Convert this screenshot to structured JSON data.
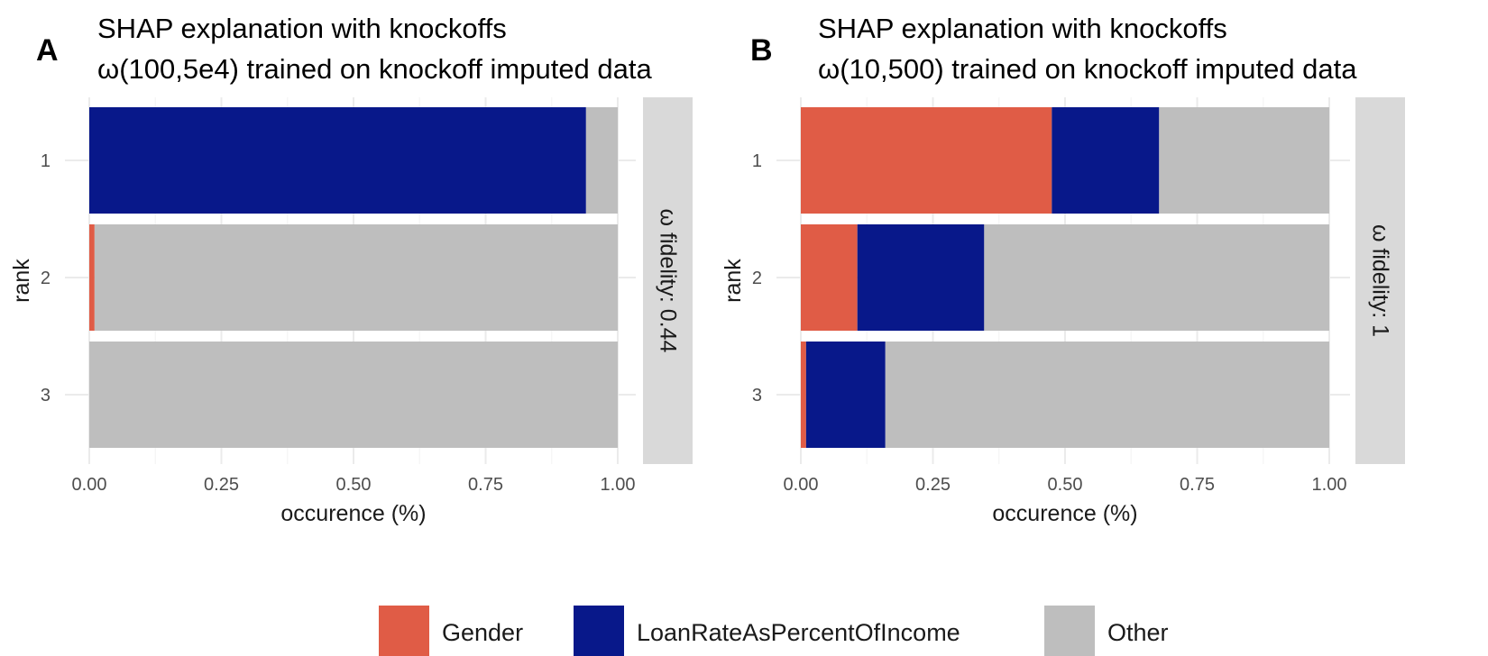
{
  "chart_data": [
    {
      "type": "bar",
      "orientation": "horizontal",
      "stacked": true,
      "panel_label": "A",
      "title": "SHAP explanation with knockoffs",
      "subtitle": "ω(100,5e4) trained on knockoff imputed data",
      "xlabel": "occurence (%)",
      "ylabel": "rank",
      "xlim": [
        0,
        1
      ],
      "x_ticks": [
        "0.00",
        "0.25",
        "0.50",
        "0.75",
        "1.00"
      ],
      "categories": [
        "1",
        "2",
        "3"
      ],
      "facet_label": "ω fidelity: 0.44",
      "series": [
        {
          "name": "Gender",
          "color": "#e05c46",
          "values": [
            0.0,
            0.01,
            0.0
          ]
        },
        {
          "name": "LoanRateAsPercentOfIncome",
          "color": "#08188a",
          "values": [
            0.94,
            0.0,
            0.0
          ]
        },
        {
          "name": "Other",
          "color": "#bebebe",
          "values": [
            0.06,
            0.99,
            1.0
          ]
        }
      ],
      "grid": true
    },
    {
      "type": "bar",
      "orientation": "horizontal",
      "stacked": true,
      "panel_label": "B",
      "title": "SHAP explanation with knockoffs",
      "subtitle": "ω(10,500) trained on knockoff imputed data",
      "xlabel": "occurence (%)",
      "ylabel": "rank",
      "xlim": [
        0,
        1
      ],
      "x_ticks": [
        "0.00",
        "0.25",
        "0.50",
        "0.75",
        "1.00"
      ],
      "categories": [
        "1",
        "2",
        "3"
      ],
      "facet_label": "ω fidelity: 1",
      "series": [
        {
          "name": "Gender",
          "color": "#e05c46",
          "values": [
            0.475,
            0.107,
            0.01
          ]
        },
        {
          "name": "LoanRateAsPercentOfIncome",
          "color": "#08188a",
          "values": [
            0.203,
            0.24,
            0.15
          ]
        },
        {
          "name": "Other",
          "color": "#bebebe",
          "values": [
            0.322,
            0.653,
            0.84
          ]
        }
      ],
      "grid": true
    }
  ],
  "legend": {
    "position": "bottom",
    "items": [
      {
        "label": "Gender",
        "color": "#e05c46"
      },
      {
        "label": "LoanRateAsPercentOfIncome",
        "color": "#08188a"
      },
      {
        "label": "Other",
        "color": "#bebebe"
      }
    ]
  }
}
